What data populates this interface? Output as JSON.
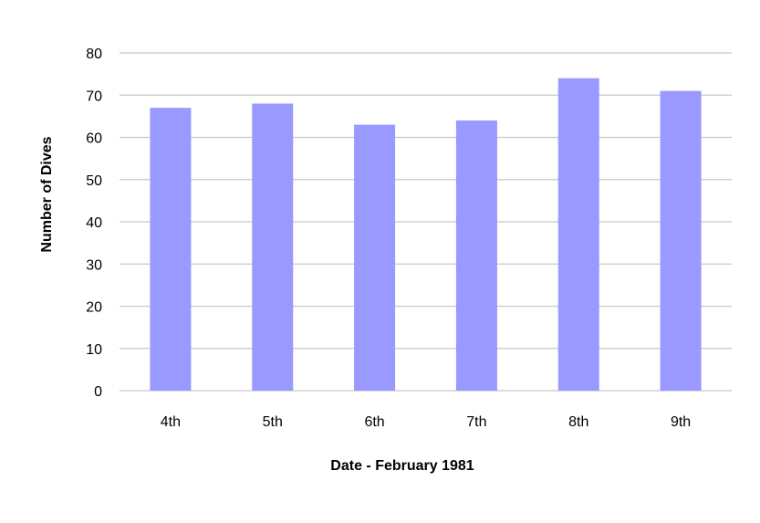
{
  "chart_data": {
    "type": "bar",
    "title": "",
    "xlabel": "Date - February 1981",
    "ylabel": "Number of Dives",
    "categories": [
      "4th",
      "5th",
      "6th",
      "7th",
      "8th",
      "9th"
    ],
    "values": [
      67,
      68,
      63,
      64,
      74,
      71
    ],
    "ylim": [
      0,
      80
    ],
    "yticks": [
      0,
      10,
      20,
      30,
      40,
      50,
      60,
      70,
      80
    ],
    "grid": true,
    "legend": "none",
    "colors": {
      "bar": "#9999ff",
      "grid": "#c8c8c8"
    }
  }
}
